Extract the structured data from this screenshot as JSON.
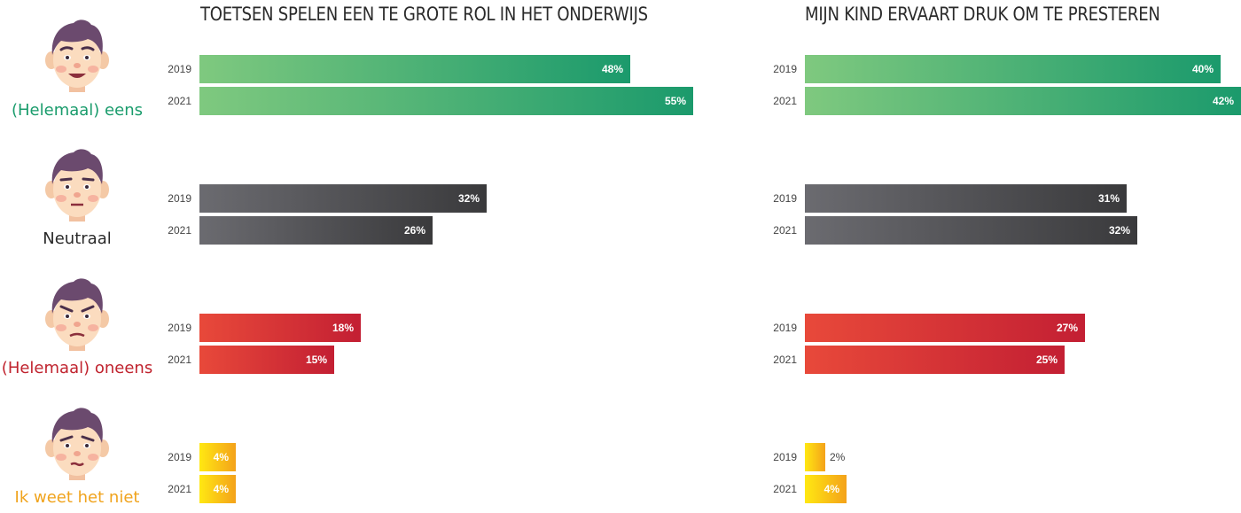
{
  "categories": [
    {
      "label": "(Helemaal) eens",
      "color": "#1a9c6c",
      "expression": "smile",
      "gradient": [
        "#7fc97f",
        "#1b9a6c"
      ],
      "value_text_color": "#ffffff"
    },
    {
      "label": "Neutraal",
      "color": "#2a2a2a",
      "expression": "neutral",
      "gradient": [
        "#6b6b70",
        "#3a3a3c"
      ],
      "value_text_color": "#ffffff"
    },
    {
      "label": "(Helemaal) oneens",
      "color": "#c0232e",
      "expression": "angry",
      "gradient": [
        "#e8493a",
        "#c31f33"
      ],
      "value_text_color": "#ffffff"
    },
    {
      "label": "Ik weet het niet",
      "color": "#f0a31c",
      "expression": "unsure",
      "gradient": [
        "#ffe812",
        "#f4a21a"
      ],
      "value_text_color": "#ffffff"
    }
  ],
  "chart_data": [
    {
      "type": "bar",
      "orientation": "horizontal",
      "title": "TOETSEN SPELEN EEN TE GROTE ROL IN HET ONDERWIJS",
      "years": [
        "2019",
        "2021"
      ],
      "unit": "%",
      "xlim": [
        0,
        55
      ],
      "series": [
        {
          "name": "(Helemaal) eens",
          "values": [
            48,
            55
          ]
        },
        {
          "name": "Neutraal",
          "values": [
            32,
            26
          ]
        },
        {
          "name": "(Helemaal) oneens",
          "values": [
            18,
            15
          ]
        },
        {
          "name": "Ik weet het niet",
          "values": [
            4,
            4
          ]
        }
      ]
    },
    {
      "type": "bar",
      "orientation": "horizontal",
      "title": "MIJN KIND ERVAART DRUK OM TE PRESTEREN",
      "years": [
        "2019",
        "2021"
      ],
      "unit": "%",
      "xlim": [
        0,
        42
      ],
      "series": [
        {
          "name": "(Helemaal) eens",
          "values": [
            40,
            42
          ]
        },
        {
          "name": "Neutraal",
          "values": [
            31,
            32
          ]
        },
        {
          "name": "(Helemaal) oneens",
          "values": [
            27,
            25
          ]
        },
        {
          "name": "Ik weet het niet",
          "values": [
            2,
            4
          ]
        }
      ]
    }
  ]
}
